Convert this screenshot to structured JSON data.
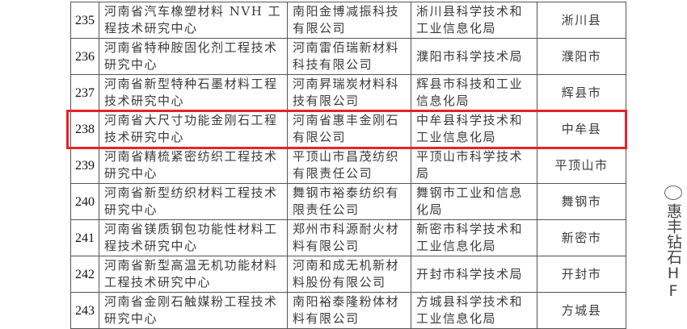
{
  "rows": [
    {
      "num": "235",
      "name": "河南省汽车橡塑材料 NVH 工程技术研究中心",
      "org": "南阳金博减振科技有限公司",
      "dept": "淅川县科学技术和工业信息化局",
      "city": "淅川县"
    },
    {
      "num": "236",
      "name": "河南省特种胺固化剂工程技术研究中心",
      "org": "河南雷佰瑞新材料科技有限公司",
      "dept": "濮阳市科学技术局",
      "city": "濮阳市"
    },
    {
      "num": "237",
      "name": "河南省新型特种石墨材料工程技术研究中心",
      "org": "河南昇瑞炭材料科技有限公司",
      "dept": "辉县市科技和工业信息化局",
      "city": "辉县市"
    },
    {
      "num": "238",
      "name": "河南省大尺寸功能金刚石工程技术研究中心",
      "org": "河南省惠丰金刚石有限公司",
      "dept": "中牟县科学技术和工业信息化局",
      "city": "中牟县"
    },
    {
      "num": "239",
      "name": "河南省精梳紧密纺织工程技术研究中心",
      "org": "平顶山市昌茂纺织有限责任公司",
      "dept": "平顶山市科学技术局",
      "city": "平顶山市"
    },
    {
      "num": "240",
      "name": "河南省新型纺织材料工程技术研究中心",
      "org": "舞钢市裕泰纺织有限责任公司",
      "dept": "舞钢市工业和信息化局",
      "city": "舞钢市"
    },
    {
      "num": "241",
      "name": "河南省镁质钢包功能性材料工程技术研究中心",
      "org": "郑州市科源耐火材料有限公司",
      "dept": "新密市科学技术和工业信息化局",
      "city": "新密市"
    },
    {
      "num": "242",
      "name": "河南省新型高温无机功能材料工程技术研究中心",
      "org": "河南和成无机新材料股份有限公司",
      "dept": "开封市科学技术局",
      "city": "开封市"
    },
    {
      "num": "243",
      "name": "河南省金刚石触媒粉工程技术研究中心",
      "org": "南阳裕泰隆粉体材料有限公司",
      "dept": "方城县科学技术和工业信息化局",
      "city": "方城县"
    }
  ],
  "highlighted_row": "238",
  "highlight_color": "#e8222a",
  "watermark": {
    "text": "惠丰钻石HF",
    "icon": "wechat-icon"
  }
}
